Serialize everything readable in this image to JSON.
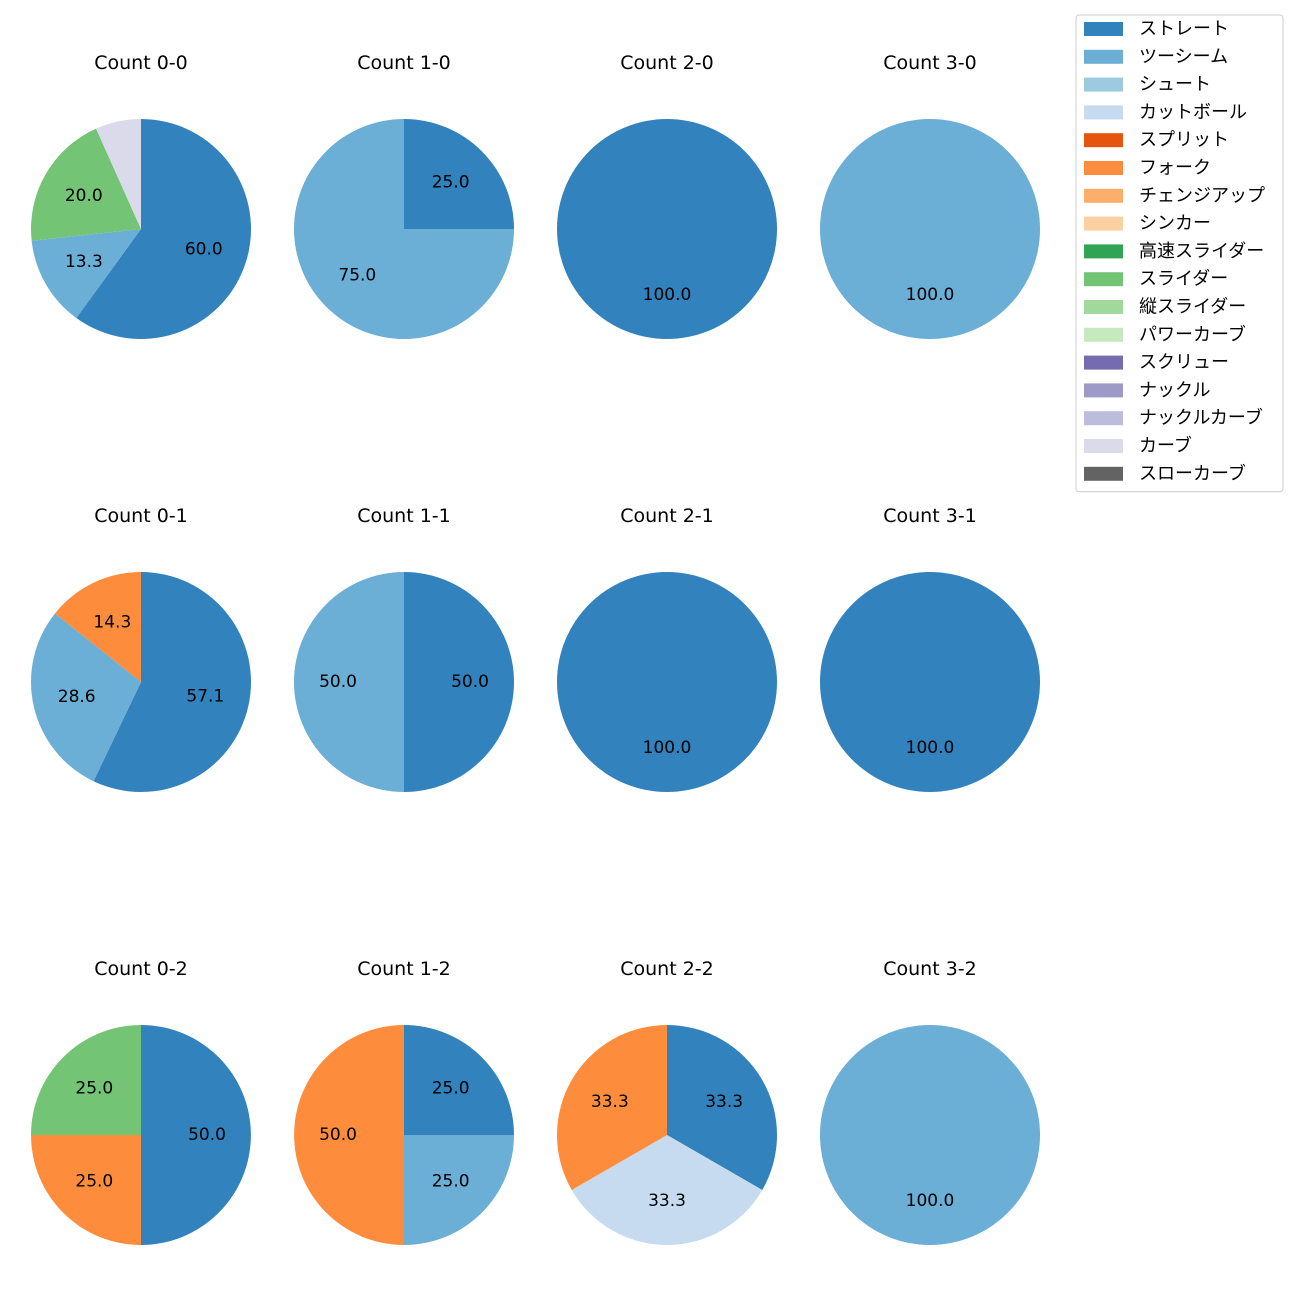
{
  "chart_data": {
    "type": "pie",
    "title": "",
    "legend": {
      "placement": "top-right",
      "entries": [
        {
          "name": "ストレート",
          "color": "#3182bd"
        },
        {
          "name": "ツーシーム",
          "color": "#6baed6"
        },
        {
          "name": "シュート",
          "color": "#9ecae1"
        },
        {
          "name": "カットボール",
          "color": "#c6dbef"
        },
        {
          "name": "スプリット",
          "color": "#e6550d"
        },
        {
          "name": "フォーク",
          "color": "#fd8d3c"
        },
        {
          "name": "チェンジアップ",
          "color": "#fdae6b"
        },
        {
          "name": "シンカー",
          "color": "#fdd0a2"
        },
        {
          "name": "高速スライダー",
          "color": "#31a354"
        },
        {
          "name": "スライダー",
          "color": "#74c476"
        },
        {
          "name": "縦スライダー",
          "color": "#a1d99b"
        },
        {
          "name": "パワーカーブ",
          "color": "#c7e9c0"
        },
        {
          "name": "スクリュー",
          "color": "#756bb1"
        },
        {
          "name": "ナックル",
          "color": "#9e9ac8"
        },
        {
          "name": "ナックルカーブ",
          "color": "#bcbddc"
        },
        {
          "name": "カーブ",
          "color": "#dadaeb"
        },
        {
          "name": "スローカーブ",
          "color": "#636363"
        }
      ]
    },
    "pies": [
      {
        "title": "Count 0-0",
        "slices": [
          {
            "pitch": "ストレート",
            "value": 60.0,
            "label": "60.0"
          },
          {
            "pitch": "ツーシーム",
            "value": 13.3,
            "label": "13.3"
          },
          {
            "pitch": "スライダー",
            "value": 20.0,
            "label": "20.0"
          },
          {
            "pitch": "カーブ",
            "value": 6.7,
            "label": ""
          }
        ]
      },
      {
        "title": "Count 1-0",
        "slices": [
          {
            "pitch": "ストレート",
            "value": 25.0,
            "label": "25.0"
          },
          {
            "pitch": "ツーシーム",
            "value": 75.0,
            "label": "75.0"
          }
        ]
      },
      {
        "title": "Count 2-0",
        "slices": [
          {
            "pitch": "ストレート",
            "value": 100.0,
            "label": "100.0"
          }
        ]
      },
      {
        "title": "Count 3-0",
        "slices": [
          {
            "pitch": "ツーシーム",
            "value": 100.0,
            "label": "100.0"
          }
        ]
      },
      {
        "title": "Count 0-1",
        "slices": [
          {
            "pitch": "ストレート",
            "value": 57.1,
            "label": "57.1"
          },
          {
            "pitch": "ツーシーム",
            "value": 28.6,
            "label": "28.6"
          },
          {
            "pitch": "フォーク",
            "value": 14.3,
            "label": "14.3"
          }
        ]
      },
      {
        "title": "Count 1-1",
        "slices": [
          {
            "pitch": "ストレート",
            "value": 50.0,
            "label": "50.0"
          },
          {
            "pitch": "ツーシーム",
            "value": 50.0,
            "label": "50.0"
          }
        ]
      },
      {
        "title": "Count 2-1",
        "slices": [
          {
            "pitch": "ストレート",
            "value": 100.0,
            "label": "100.0"
          }
        ]
      },
      {
        "title": "Count 3-1",
        "slices": [
          {
            "pitch": "ストレート",
            "value": 100.0,
            "label": "100.0"
          }
        ]
      },
      {
        "title": "Count 0-2",
        "slices": [
          {
            "pitch": "ストレート",
            "value": 50.0,
            "label": "50.0"
          },
          {
            "pitch": "フォーク",
            "value": 25.0,
            "label": "25.0"
          },
          {
            "pitch": "スライダー",
            "value": 25.0,
            "label": "25.0"
          }
        ]
      },
      {
        "title": "Count 1-2",
        "slices": [
          {
            "pitch": "ストレート",
            "value": 25.0,
            "label": "25.0"
          },
          {
            "pitch": "ツーシーム",
            "value": 25.0,
            "label": "25.0"
          },
          {
            "pitch": "フォーク",
            "value": 50.0,
            "label": "50.0"
          }
        ]
      },
      {
        "title": "Count 2-2",
        "slices": [
          {
            "pitch": "ストレート",
            "value": 33.3,
            "label": "33.3"
          },
          {
            "pitch": "カットボール",
            "value": 33.3,
            "label": "33.3"
          },
          {
            "pitch": "フォーク",
            "value": 33.3,
            "label": "33.3"
          }
        ]
      },
      {
        "title": "Count 3-2",
        "slices": [
          {
            "pitch": "ツーシーム",
            "value": 100.0,
            "label": "100.0"
          }
        ]
      }
    ]
  }
}
